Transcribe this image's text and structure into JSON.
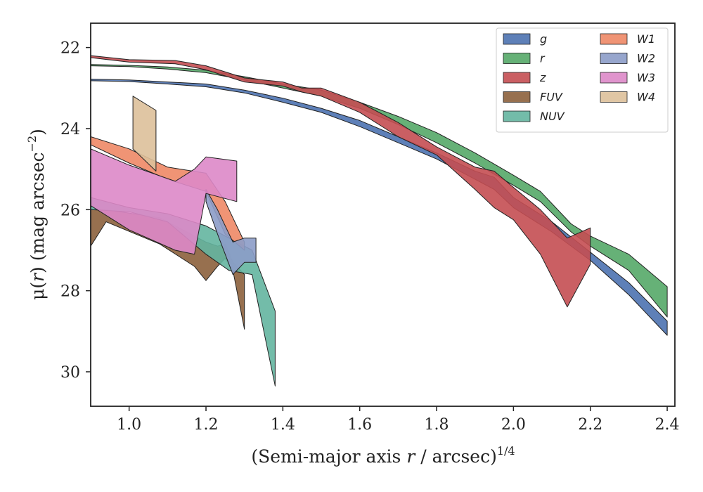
{
  "chart_data": {
    "type": "area",
    "xlabel_prefix": "(Semi-major axis ",
    "xlabel_var": "r",
    "xlabel_suffix": " / arcsec)",
    "xlabel_sup": "1/4",
    "ylabel_prefix": "μ(",
    "ylabel_var": "r",
    "ylabel_suffix": ") (mag arcsec",
    "ylabel_sup": "−2",
    "ylabel_close": ")",
    "xlim": [
      0.9,
      2.42
    ],
    "ylim": [
      30.85,
      21.4
    ],
    "y_inverted": true,
    "xticks": [
      1.0,
      1.2,
      1.4,
      1.6,
      1.8,
      2.0,
      2.2,
      2.4
    ],
    "xtick_labels": [
      "1.0",
      "1.2",
      "1.4",
      "1.6",
      "1.8",
      "2.0",
      "2.2",
      "2.4"
    ],
    "yticks": [
      22,
      24,
      26,
      28,
      30
    ],
    "ytick_labels": [
      "22",
      "24",
      "26",
      "28",
      "30"
    ],
    "legend_position": "top-right",
    "legend_columns": 2,
    "series": [
      {
        "name": "g",
        "color": "#4c72b0",
        "x": [
          0.9,
          1.0,
          1.1,
          1.2,
          1.3,
          1.4,
          1.5,
          1.6,
          1.7,
          1.8,
          1.9,
          1.95,
          2.0,
          2.1,
          2.2,
          2.3,
          2.4
        ],
        "lower": [
          22.78,
          22.8,
          22.85,
          22.9,
          23.05,
          23.25,
          23.5,
          23.8,
          24.2,
          24.6,
          25.05,
          25.2,
          25.7,
          26.3,
          27.05,
          27.8,
          28.75
        ],
        "upper": [
          22.82,
          22.84,
          22.9,
          22.97,
          23.12,
          23.35,
          23.6,
          23.95,
          24.35,
          24.75,
          25.25,
          25.5,
          25.95,
          26.55,
          27.25,
          28.1,
          29.1
        ]
      },
      {
        "name": "r",
        "color": "#55a868",
        "x": [
          0.9,
          1.0,
          1.1,
          1.2,
          1.3,
          1.4,
          1.5,
          1.6,
          1.7,
          1.8,
          1.9,
          2.0,
          2.07,
          2.15,
          2.2,
          2.3,
          2.4
        ],
        "lower": [
          22.42,
          22.44,
          22.48,
          22.56,
          22.72,
          22.9,
          23.05,
          23.35,
          23.7,
          24.1,
          24.6,
          25.15,
          25.55,
          26.35,
          26.65,
          27.1,
          27.9
        ],
        "upper": [
          22.45,
          22.47,
          22.53,
          22.62,
          22.8,
          23.0,
          23.2,
          23.5,
          23.9,
          24.35,
          24.85,
          25.4,
          25.8,
          26.55,
          26.9,
          27.5,
          28.65
        ]
      },
      {
        "name": "z",
        "color": "#c44e52",
        "x": [
          0.9,
          1.0,
          1.12,
          1.2,
          1.3,
          1.4,
          1.45,
          1.5,
          1.6,
          1.7,
          1.8,
          1.9,
          1.95,
          2.0,
          2.07,
          2.14,
          2.2
        ],
        "lower": [
          22.2,
          22.3,
          22.32,
          22.45,
          22.75,
          22.85,
          23.0,
          23.0,
          23.35,
          23.85,
          24.45,
          24.95,
          25.05,
          25.45,
          26.0,
          26.7,
          26.45
        ],
        "upper": [
          22.25,
          22.36,
          22.4,
          22.55,
          22.85,
          22.95,
          23.1,
          23.2,
          23.6,
          24.2,
          24.65,
          25.5,
          25.95,
          26.25,
          27.1,
          28.4,
          27.35
        ]
      },
      {
        "name": "FUV",
        "color": "#8c613c",
        "x": [
          0.9,
          0.94,
          1.08,
          1.17,
          1.2,
          1.23,
          1.25,
          1.27,
          1.3
        ],
        "lower": [
          26.0,
          26.0,
          26.2,
          26.65,
          26.8,
          26.9,
          26.85,
          27.3,
          27.6
        ],
        "upper": [
          26.9,
          26.3,
          26.85,
          27.4,
          27.75,
          27.4,
          27.2,
          27.5,
          28.95
        ]
      },
      {
        "name": "NUV",
        "color": "#64b5a0",
        "x": [
          0.9,
          1.0,
          1.1,
          1.2,
          1.26,
          1.32,
          1.38
        ],
        "lower": [
          25.7,
          25.95,
          26.1,
          26.4,
          26.7,
          27.0,
          28.5
        ],
        "upper": [
          26.0,
          26.05,
          26.3,
          27.1,
          27.5,
          27.6,
          30.35
        ]
      },
      {
        "name": "W1",
        "color": "#ee8866",
        "x": [
          0.9,
          1.0,
          1.1,
          1.2,
          1.25,
          1.3
        ],
        "lower": [
          24.2,
          24.5,
          24.95,
          25.1,
          25.8,
          26.8
        ],
        "upper": [
          24.4,
          24.85,
          25.25,
          25.55,
          26.6,
          27.0
        ]
      },
      {
        "name": "W2",
        "color": "#8c9cc8",
        "x": [
          1.2,
          1.23,
          1.27,
          1.3,
          1.33
        ],
        "lower": [
          25.5,
          26.0,
          26.8,
          26.7,
          26.7
        ],
        "upper": [
          25.8,
          26.6,
          27.6,
          27.3,
          27.3
        ]
      },
      {
        "name": "W3",
        "color": "#dd88c8",
        "x": [
          0.9,
          1.0,
          1.12,
          1.17,
          1.2,
          1.28
        ],
        "lower": [
          24.5,
          24.9,
          25.3,
          25.0,
          24.7,
          24.8
        ],
        "upper": [
          25.9,
          26.5,
          27.0,
          27.1,
          25.6,
          25.8
        ]
      },
      {
        "name": "W4",
        "color": "#ddc09a",
        "x": [
          1.01,
          1.07
        ],
        "lower": [
          23.2,
          23.55
        ],
        "upper": [
          24.5,
          25.05
        ]
      }
    ]
  }
}
